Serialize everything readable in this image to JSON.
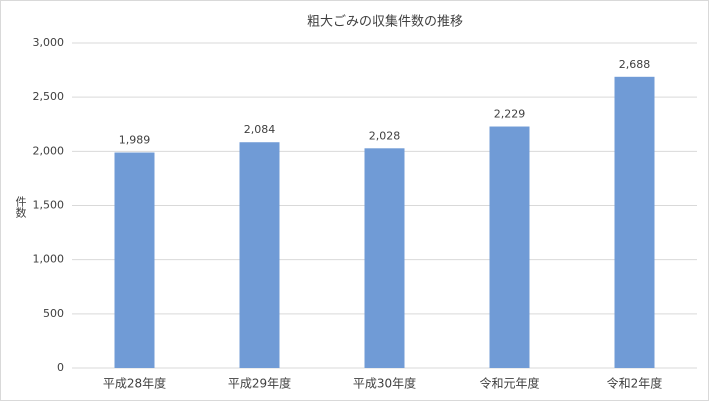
{
  "chart_data": {
    "type": "bar",
    "title": "粗大ごみの収集件数の推移",
    "y_label": "件数",
    "categories": [
      "平成28年度",
      "平成29年度",
      "平成30年度",
      "令和元年度",
      "令和2年度"
    ],
    "values": [
      1989,
      2084,
      2028,
      2229,
      2688
    ],
    "value_labels": [
      "1,989",
      "2,084",
      "2,028",
      "2,229",
      "2,688"
    ],
    "color": "#709bd6",
    "ylim": [
      0,
      3000
    ],
    "yticks": [
      0,
      500,
      {
        "value": 1000,
        "label": "1,000"
      },
      {
        "value": 1500,
        "label": "1,500"
      },
      {
        "value": 2000,
        "label": "2,000"
      },
      {
        "value": 2500,
        "label": "2,500"
      },
      {
        "value": 3000,
        "label": "3,000"
      }
    ],
    "grid": true
  }
}
